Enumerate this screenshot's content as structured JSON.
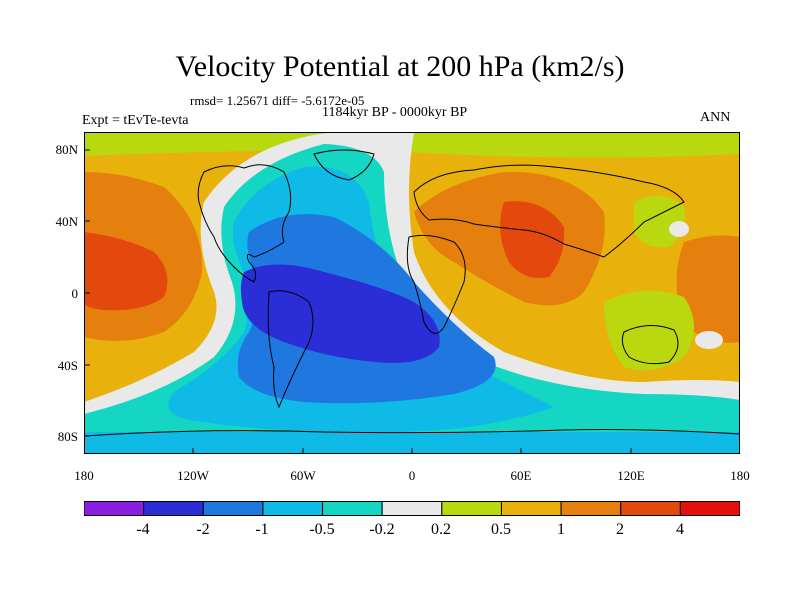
{
  "title": "Velocity Potential at 200 hPa (km2/s)",
  "stats": "rmsd= 1.25671 diff= -5.6172e-05",
  "period": "1184kyr BP - 0000kyr BP",
  "experiment": "Expt = tEvTe-tevta",
  "season": "ANN",
  "map": {
    "projection": "cylindrical equidistant",
    "lon_range": [
      -180,
      180
    ],
    "lat_range": [
      -90,
      90
    ],
    "lat_ticks": [
      "80N",
      "40N",
      "0",
      "40S",
      "80S"
    ],
    "lon_ticks": [
      "180",
      "120W",
      "60W",
      "0",
      "60E",
      "120E",
      "180"
    ]
  },
  "colorbar": {
    "labels": [
      "-4",
      "-2",
      "-1",
      "-0.5",
      "-0.2",
      "0.2",
      "0.5",
      "1",
      "2",
      "4"
    ],
    "colors": [
      "#8a1ee0",
      "#2b2ed6",
      "#1e78e0",
      "#0fbbe6",
      "#14d6c2",
      "#e9e9e9",
      "#b9d80f",
      "#e9b10b",
      "#e5800e",
      "#e3490c",
      "#e3110c"
    ]
  }
}
